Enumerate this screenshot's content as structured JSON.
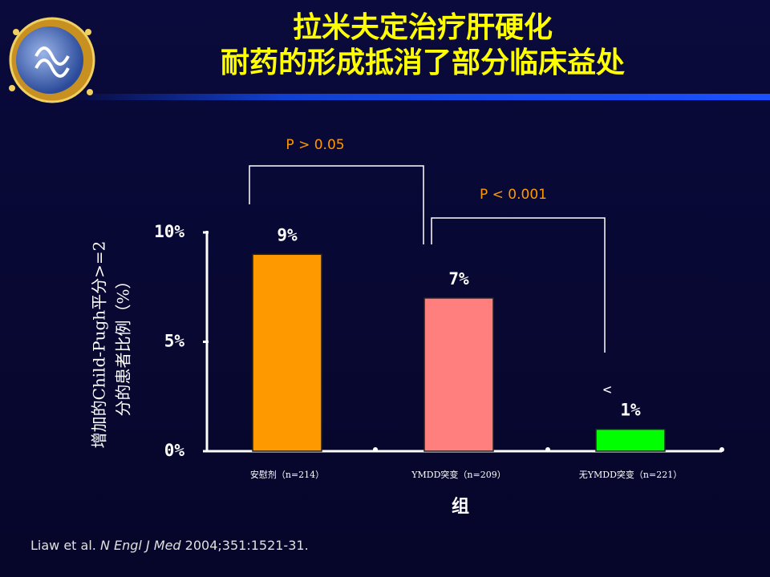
{
  "chart_data": {
    "type": "bar",
    "title": "拉米夫定治疗肝硬化",
    "subtitle": "耐药的形成抵消了部分临床益处",
    "categories": [
      "安慰剂（n=214）",
      "YMDD突变（n=209）",
      "无YMDD突变（n=221）"
    ],
    "values": [
      9,
      7,
      1
    ],
    "value_labels": [
      "9%",
      "7%",
      "1%"
    ],
    "colors": [
      "#ff9900",
      "#ff7f7f",
      "#00ff00"
    ],
    "ylim": [
      0,
      10
    ],
    "yticks": [
      {
        "value": 0,
        "label": "0%"
      },
      {
        "value": 5,
        "label": "5%"
      },
      {
        "value": 10,
        "label": "10%"
      }
    ],
    "ylabel": [
      "增加的Child-Pugh平分>=2",
      "分的患者比例（%）"
    ],
    "xlabel": "组",
    "annotations": [
      "P > 0.05",
      "P < 0.001",
      "<"
    ],
    "grid": false
  },
  "citation": {
    "authors": "Liaw et al.",
    "journal": "N Engl J Med",
    "details": "2004;351:1521-31."
  }
}
